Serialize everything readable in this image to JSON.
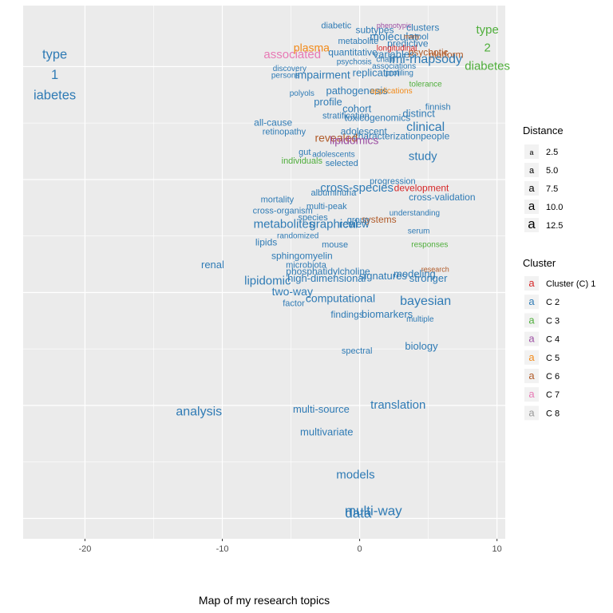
{
  "chart_data": {
    "type": "scatter",
    "title": "",
    "caption": "Map of my research topics",
    "xlabel": "",
    "ylabel": "",
    "xlim": [
      -24.5,
      10.6
    ],
    "x_ticks": [
      -20,
      -10,
      0,
      10
    ],
    "ylim": [
      -10.9,
      12.7
    ],
    "grid": true,
    "legend_position": "right",
    "size_legend": {
      "title": "Distance",
      "values": [
        2.5,
        5.0,
        7.5,
        10.0,
        12.5
      ],
      "labels": [
        "2.5",
        "5.0",
        "7.5",
        "10.0",
        "12.5"
      ]
    },
    "cluster_legend": {
      "title": "Cluster",
      "items": [
        {
          "label": "Cluster (C) 1",
          "color": "#d62728"
        },
        {
          "label": "C 2",
          "color": "#2f7bb5"
        },
        {
          "label": "C 3",
          "color": "#4fae3b"
        },
        {
          "label": "C 4",
          "color": "#9c4fa3"
        },
        {
          "label": "C 5",
          "color": "#f28a18"
        },
        {
          "label": "C 6",
          "color": "#b05a28"
        },
        {
          "label": "C 7",
          "color": "#e879b5"
        },
        {
          "label": "C 8",
          "color": "#999999"
        }
      ]
    },
    "points": [
      {
        "label": "type",
        "x": -22.2,
        "y": 10.5,
        "cluster": 2,
        "size": 12.5
      },
      {
        "label": "1",
        "x": -22.2,
        "y": 9.6,
        "cluster": 2,
        "size": 12.5
      },
      {
        "label": "iabetes",
        "x": -22.2,
        "y": 8.7,
        "cluster": 2,
        "size": 12.5
      },
      {
        "label": "type",
        "x": 9.3,
        "y": 11.6,
        "cluster": 3,
        "size": 11
      },
      {
        "label": "2",
        "x": 9.3,
        "y": 10.8,
        "cluster": 3,
        "size": 11
      },
      {
        "label": "diabetes",
        "x": 9.3,
        "y": 10.0,
        "cluster": 3,
        "size": 11
      },
      {
        "label": "associated",
        "x": -4.9,
        "y": 10.5,
        "cluster": 7,
        "size": 11
      },
      {
        "label": "plasma",
        "x": -3.5,
        "y": 10.8,
        "cluster": 5,
        "size": 10
      },
      {
        "label": "diabetic",
        "x": -1.7,
        "y": 11.8,
        "cluster": 2,
        "size": 7
      },
      {
        "label": "subtypes",
        "x": 1.1,
        "y": 11.6,
        "cluster": 2,
        "size": 8
      },
      {
        "label": "phenotypic",
        "x": 2.5,
        "y": 11.8,
        "cluster": 4,
        "size": 5
      },
      {
        "label": "clusters",
        "x": 4.6,
        "y": 11.7,
        "cluster": 2,
        "size": 8
      },
      {
        "label": "molecular",
        "x": 2.5,
        "y": 11.3,
        "cluster": 2,
        "size": 10
      },
      {
        "label": "tool",
        "x": 4.5,
        "y": 11.3,
        "cluster": 2,
        "size": 7
      },
      {
        "label": "many",
        "x": 3.8,
        "y": 11.3,
        "cluster": 6,
        "size": 4
      },
      {
        "label": "metabolite",
        "x": -0.1,
        "y": 11.1,
        "cluster": 2,
        "size": 7
      },
      {
        "label": "predictive",
        "x": 3.5,
        "y": 11.0,
        "cluster": 2,
        "size": 8
      },
      {
        "label": "longitudinal",
        "x": 2.7,
        "y": 10.8,
        "cluster": 1,
        "size": 6
      },
      {
        "label": "quantitative",
        "x": -0.5,
        "y": 10.6,
        "cluster": 2,
        "size": 8
      },
      {
        "label": "variables",
        "x": 2.5,
        "y": 10.5,
        "cluster": 2,
        "size": 9
      },
      {
        "label": "psychotic",
        "x": 5.0,
        "y": 10.6,
        "cluster": 6,
        "size": 8
      },
      {
        "label": "platform",
        "x": 6.3,
        "y": 10.5,
        "cluster": 6,
        "size": 8
      },
      {
        "label": "imi-rhapsody",
        "x": 4.8,
        "y": 10.3,
        "cluster": 2,
        "size": 12
      },
      {
        "label": "chain",
        "x": 1.9,
        "y": 10.3,
        "cluster": 2,
        "size": 6
      },
      {
        "label": "psychosis",
        "x": -0.4,
        "y": 10.2,
        "cluster": 2,
        "size": 6
      },
      {
        "label": "associations",
        "x": 2.5,
        "y": 10.0,
        "cluster": 2,
        "size": 6
      },
      {
        "label": "discovery",
        "x": -5.1,
        "y": 9.9,
        "cluster": 2,
        "size": 6
      },
      {
        "label": "replication",
        "x": 1.2,
        "y": 9.7,
        "cluster": 2,
        "size": 9
      },
      {
        "label": "profiling",
        "x": 2.9,
        "y": 9.7,
        "cluster": 2,
        "size": 6
      },
      {
        "label": "impairment",
        "x": -2.7,
        "y": 9.6,
        "cluster": 2,
        "size": 10
      },
      {
        "label": "persons",
        "x": -5.4,
        "y": 9.6,
        "cluster": 2,
        "size": 6
      },
      {
        "label": "tolerance",
        "x": 4.8,
        "y": 9.2,
        "cluster": 3,
        "size": 6
      },
      {
        "label": "pathogenesis",
        "x": -0.2,
        "y": 8.9,
        "cluster": 2,
        "size": 9
      },
      {
        "label": "applications",
        "x": 2.3,
        "y": 8.9,
        "cluster": 5,
        "size": 6
      },
      {
        "label": "polyols",
        "x": -4.2,
        "y": 8.8,
        "cluster": 2,
        "size": 6
      },
      {
        "label": "profile",
        "x": -2.3,
        "y": 8.4,
        "cluster": 2,
        "size": 9
      },
      {
        "label": "cohort",
        "x": -0.2,
        "y": 8.1,
        "cluster": 2,
        "size": 9
      },
      {
        "label": "finnish",
        "x": 5.7,
        "y": 8.2,
        "cluster": 2,
        "size": 7
      },
      {
        "label": "distinct",
        "x": 4.3,
        "y": 7.9,
        "cluster": 2,
        "size": 9
      },
      {
        "label": "stratification",
        "x": -1.0,
        "y": 7.8,
        "cluster": 2,
        "size": 7
      },
      {
        "label": "toxicogenomics",
        "x": 1.3,
        "y": 7.7,
        "cluster": 2,
        "size": 8
      },
      {
        "label": "all-cause",
        "x": -6.3,
        "y": 7.5,
        "cluster": 2,
        "size": 8
      },
      {
        "label": "clinical",
        "x": 4.8,
        "y": 7.3,
        "cluster": 2,
        "size": 12
      },
      {
        "label": "retinopathy",
        "x": -5.5,
        "y": 7.1,
        "cluster": 2,
        "size": 7
      },
      {
        "label": "adolescent",
        "x": 0.3,
        "y": 7.1,
        "cluster": 2,
        "size": 8
      },
      {
        "label": "people",
        "x": 5.5,
        "y": 6.9,
        "cluster": 2,
        "size": 8
      },
      {
        "label": "characterization",
        "x": 2.0,
        "y": 6.9,
        "cluster": 2,
        "size": 8
      },
      {
        "label": "revealed",
        "x": -1.7,
        "y": 6.8,
        "cluster": 6,
        "size": 10
      },
      {
        "label": "lipidomics",
        "x": -0.4,
        "y": 6.7,
        "cluster": 4,
        "size": 10
      },
      {
        "label": "gut",
        "x": -4.0,
        "y": 6.2,
        "cluster": 2,
        "size": 7
      },
      {
        "label": "adolescents",
        "x": -1.9,
        "y": 6.1,
        "cluster": 2,
        "size": 6
      },
      {
        "label": "study",
        "x": 4.6,
        "y": 6.0,
        "cluster": 2,
        "size": 11
      },
      {
        "label": "individuals",
        "x": -4.2,
        "y": 5.8,
        "cluster": 3,
        "size": 7
      },
      {
        "label": "selected",
        "x": -1.3,
        "y": 5.7,
        "cluster": 2,
        "size": 7
      },
      {
        "label": "development",
        "x": 4.5,
        "y": 4.6,
        "cluster": 1,
        "size": 8
      },
      {
        "label": "progression",
        "x": 2.4,
        "y": 4.9,
        "cluster": 2,
        "size": 7
      },
      {
        "label": "albuminuria",
        "x": -1.9,
        "y": 4.4,
        "cluster": 2,
        "size": 7
      },
      {
        "label": "cross-species",
        "x": -0.2,
        "y": 4.6,
        "cluster": 2,
        "size": 11
      },
      {
        "label": "cross-validation",
        "x": 6.0,
        "y": 4.2,
        "cluster": 2,
        "size": 8
      },
      {
        "label": "mortality",
        "x": -6.0,
        "y": 4.1,
        "cluster": 2,
        "size": 7
      },
      {
        "label": "multi-peak",
        "x": -2.4,
        "y": 3.8,
        "cluster": 2,
        "size": 7
      },
      {
        "label": "cross-organism",
        "x": -5.6,
        "y": 3.6,
        "cluster": 2,
        "size": 7
      },
      {
        "label": "metabolites",
        "x": -5.5,
        "y": 3.0,
        "cluster": 2,
        "size": 11
      },
      {
        "label": "species",
        "x": -3.4,
        "y": 3.3,
        "cluster": 2,
        "size": 7
      },
      {
        "label": "graphical",
        "x": -1.9,
        "y": 3.0,
        "cluster": 2,
        "size": 11
      },
      {
        "label": "review",
        "x": -0.4,
        "y": 3.0,
        "cluster": 2,
        "size": 9
      },
      {
        "label": "systems",
        "x": 1.4,
        "y": 3.2,
        "cluster": 6,
        "size": 8
      },
      {
        "label": "group",
        "x": -0.1,
        "y": 3.2,
        "cluster": 2,
        "size": 7
      },
      {
        "label": "understanding",
        "x": 4.0,
        "y": 3.5,
        "cluster": 2,
        "size": 6
      },
      {
        "label": "serum",
        "x": 4.3,
        "y": 2.7,
        "cluster": 2,
        "size": 6
      },
      {
        "label": "lipids",
        "x": -6.8,
        "y": 2.2,
        "cluster": 2,
        "size": 8
      },
      {
        "label": "randomized",
        "x": -4.5,
        "y": 2.5,
        "cluster": 2,
        "size": 6
      },
      {
        "label": "mouse",
        "x": -1.8,
        "y": 2.1,
        "cluster": 2,
        "size": 7
      },
      {
        "label": "responses",
        "x": 5.1,
        "y": 2.1,
        "cluster": 3,
        "size": 6
      },
      {
        "label": "sphingomyelin",
        "x": -4.2,
        "y": 1.6,
        "cluster": 2,
        "size": 8
      },
      {
        "label": "renal",
        "x": -10.7,
        "y": 1.2,
        "cluster": 2,
        "size": 9
      },
      {
        "label": "microbiota",
        "x": -3.9,
        "y": 1.2,
        "cluster": 2,
        "size": 7
      },
      {
        "label": "phosphatidylcholine",
        "x": -2.3,
        "y": 0.9,
        "cluster": 2,
        "size": 8
      },
      {
        "label": "research",
        "x": 5.5,
        "y": 1.0,
        "cluster": 6,
        "size": 5
      },
      {
        "label": "lipidomic",
        "x": -6.7,
        "y": 0.5,
        "cluster": 2,
        "size": 11
      },
      {
        "label": "high-dimensional",
        "x": -2.4,
        "y": 0.6,
        "cluster": 2,
        "size": 9
      },
      {
        "label": "signatures",
        "x": 1.7,
        "y": 0.7,
        "cluster": 2,
        "size": 9
      },
      {
        "label": "modeling",
        "x": 4.0,
        "y": 0.8,
        "cluster": 2,
        "size": 9
      },
      {
        "label": "stronger",
        "x": 5.0,
        "y": 0.6,
        "cluster": 2,
        "size": 9
      },
      {
        "label": "two-way",
        "x": -4.9,
        "y": 0.0,
        "cluster": 2,
        "size": 10
      },
      {
        "label": "computational",
        "x": -1.4,
        "y": -0.3,
        "cluster": 2,
        "size": 10
      },
      {
        "label": "bayesian",
        "x": 4.8,
        "y": -0.4,
        "cluster": 2,
        "size": 12
      },
      {
        "label": "factor",
        "x": -4.8,
        "y": -0.5,
        "cluster": 2,
        "size": 7
      },
      {
        "label": "findings",
        "x": -0.9,
        "y": -1.0,
        "cluster": 2,
        "size": 8
      },
      {
        "label": "biomarkers",
        "x": 2.0,
        "y": -1.0,
        "cluster": 2,
        "size": 9
      },
      {
        "label": "multiple",
        "x": 4.4,
        "y": -1.2,
        "cluster": 2,
        "size": 6
      },
      {
        "label": "spectral",
        "x": -0.2,
        "y": -2.6,
        "cluster": 2,
        "size": 7
      },
      {
        "label": "biology",
        "x": 4.5,
        "y": -2.4,
        "cluster": 2,
        "size": 9
      },
      {
        "label": "analysis",
        "x": -11.7,
        "y": -5.3,
        "cluster": 2,
        "size": 12
      },
      {
        "label": "multi-source",
        "x": -2.8,
        "y": -5.2,
        "cluster": 2,
        "size": 9
      },
      {
        "label": "translation",
        "x": 2.8,
        "y": -5.0,
        "cluster": 2,
        "size": 11
      },
      {
        "label": "multivariate",
        "x": -2.4,
        "y": -6.2,
        "cluster": 2,
        "size": 9
      },
      {
        "label": "models",
        "x": -0.3,
        "y": -8.1,
        "cluster": 2,
        "size": 11
      },
      {
        "label": "multi-way",
        "x": 1.0,
        "y": -9.7,
        "cluster": 2,
        "size": 13
      },
      {
        "label": "data",
        "x": -0.1,
        "y": -9.8,
        "cluster": 2,
        "size": 13
      }
    ]
  }
}
